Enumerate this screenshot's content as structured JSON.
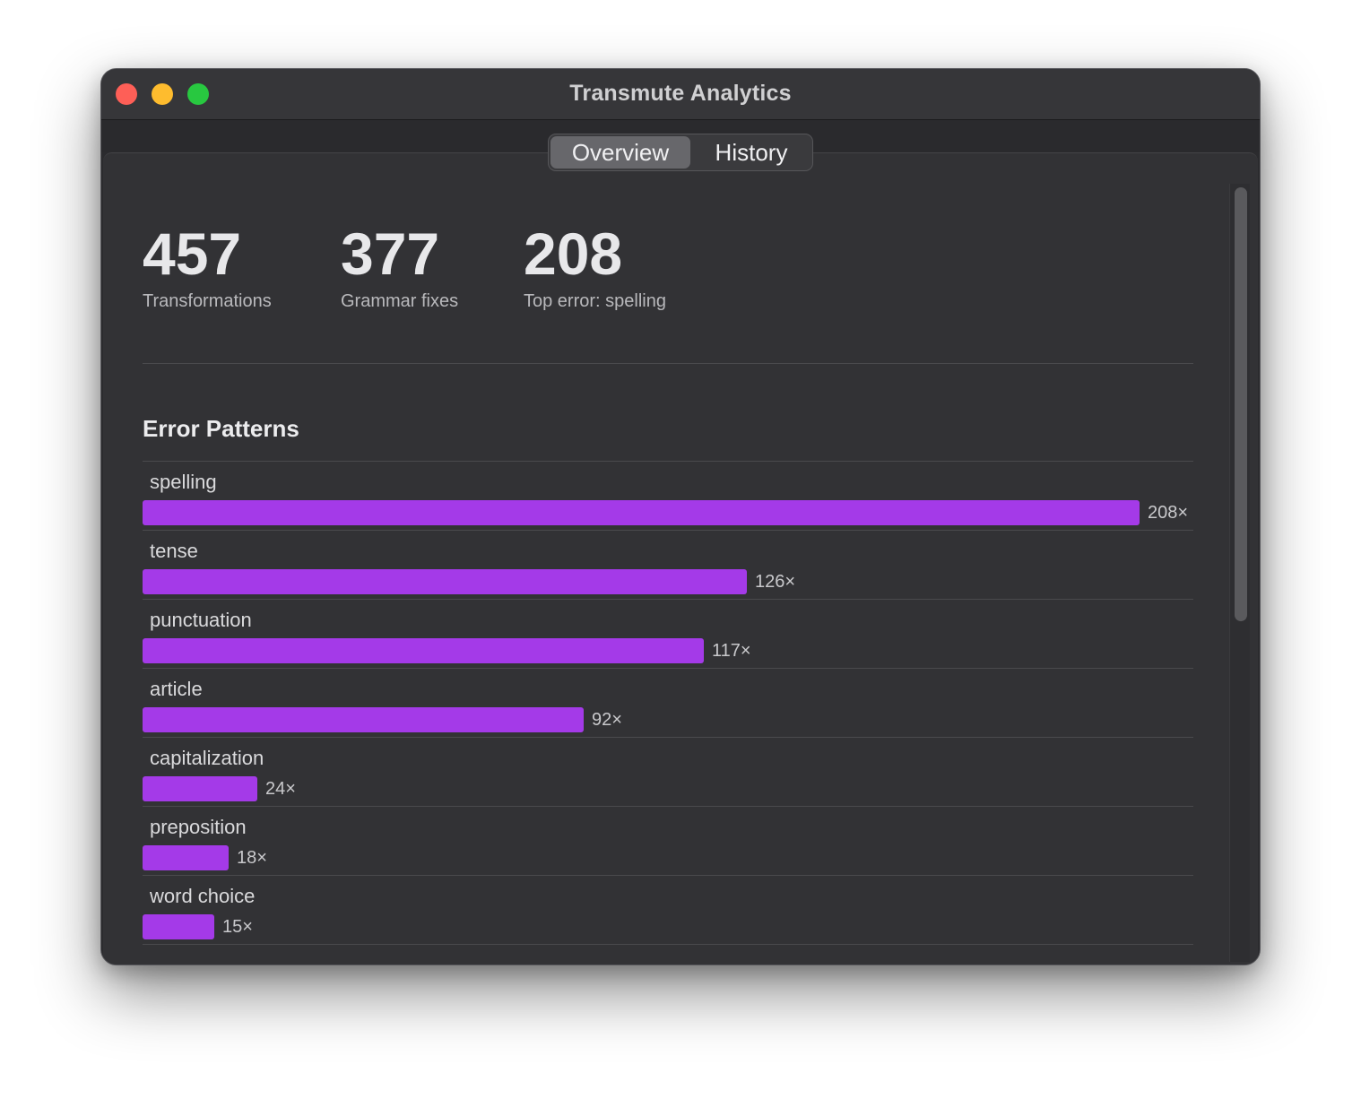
{
  "window": {
    "title": "Transmute Analytics"
  },
  "tabs": [
    {
      "label": "Overview",
      "active": true
    },
    {
      "label": "History",
      "active": false
    }
  ],
  "stats": [
    {
      "value": "457",
      "label": "Transformations"
    },
    {
      "value": "377",
      "label": "Grammar fixes"
    },
    {
      "value": "208",
      "label": "Top error: spelling"
    }
  ],
  "section": {
    "title": "Error Patterns"
  },
  "colors": {
    "bar": "#a43ae8",
    "background": "#323235"
  },
  "chart_data": {
    "type": "bar",
    "orientation": "horizontal",
    "title": "Error Patterns",
    "categories": [
      "spelling",
      "tense",
      "punctuation",
      "article",
      "capitalization",
      "preposition",
      "word choice"
    ],
    "values": [
      208,
      126,
      117,
      92,
      24,
      18,
      15
    ],
    "value_labels": [
      "208×",
      "126×",
      "117×",
      "92×",
      "24×",
      "18×",
      "15×"
    ]
  }
}
